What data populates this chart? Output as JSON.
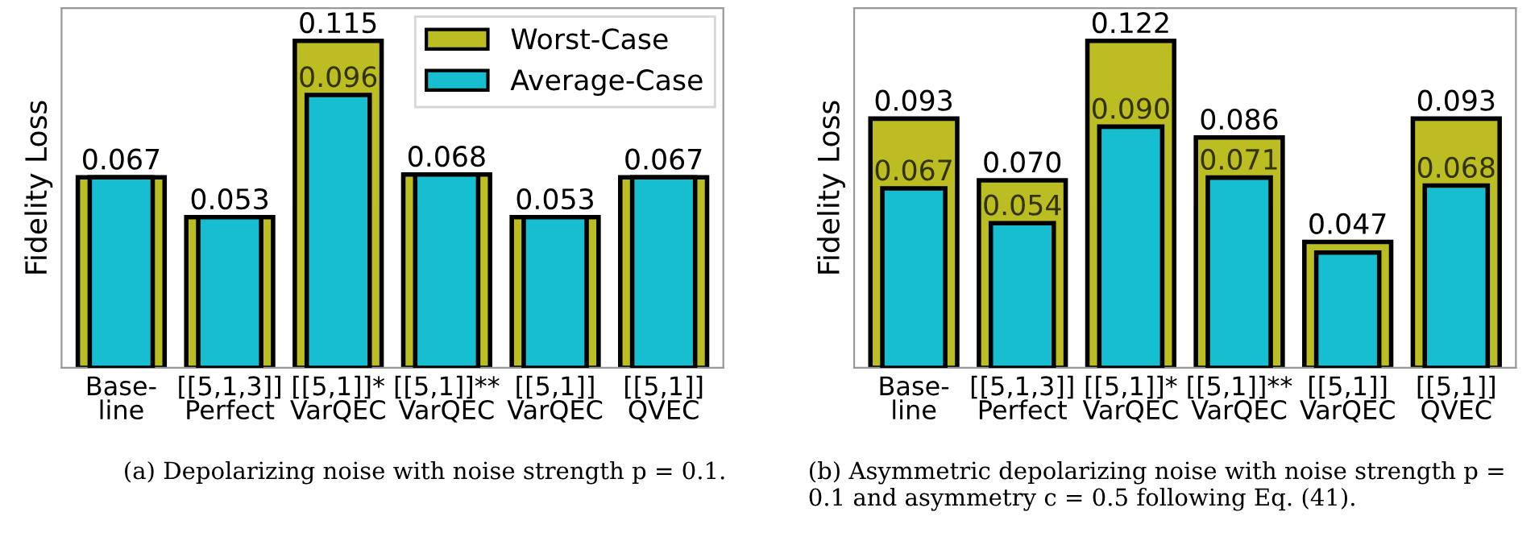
{
  "chart_data": [
    {
      "type": "bar",
      "ylabel": "Fidelity Loss",
      "legend": "top right",
      "tick_labels": "x",
      "categories": [
        "Base-\nline",
        "[[5,1,3]]\nPerfect",
        "[[5,1]]*\nVarQEC",
        "[[5,1]]**\nVarQEC",
        "[[5,1]]\nVarQEC",
        "[[5,1]]\nQVEC"
      ],
      "series": [
        {
          "name": "Worst-Case",
          "color": "#bcbd22",
          "values": [
            0.067,
            0.053,
            0.115,
            0.068,
            0.053,
            0.067
          ],
          "value_labels": [
            "0.067",
            "0.053",
            "0.115",
            "0.068",
            "0.053",
            "0.067"
          ]
        },
        {
          "name": "Average-Case",
          "color": "#17becf",
          "values": [
            0.067,
            0.053,
            0.096,
            0.068,
            0.053,
            0.067
          ],
          "value_labels": [
            null,
            null,
            "0.096",
            null,
            null,
            null
          ]
        }
      ],
      "annotations": [
        "(a) Depolarizing noise with noise strength p = 0.1."
      ]
    },
    {
      "type": "bar",
      "ylabel": "Fidelity Loss",
      "tick_labels": "x",
      "categories": [
        "Base-\nline",
        "[[5,1,3]]\nPerfect",
        "[[5,1]]*\nVarQEC",
        "[[5,1]]**\nVarQEC",
        "[[5,1]]\nVarQEC",
        "[[5,1]]\nQVEC"
      ],
      "series": [
        {
          "color": "#bcbd22",
          "values": [
            0.093,
            0.07,
            0.122,
            0.086,
            0.047,
            0.093
          ],
          "value_labels": [
            "0.093",
            "0.070",
            "0.122",
            "0.086",
            "0.047",
            "0.093"
          ]
        },
        {
          "color": "#17becf",
          "values": [
            0.067,
            0.054,
            0.09,
            0.071,
            0.043,
            0.068
          ],
          "value_labels": [
            "0.067",
            "0.054",
            "0.090",
            "0.071",
            null,
            "0.068"
          ]
        }
      ],
      "annotations": [
        "(b) Asymmetric depolarizing noise with noise strength p =\n0.1 and asymmetry c = 0.5 following Eq. (41)."
      ]
    }
  ]
}
